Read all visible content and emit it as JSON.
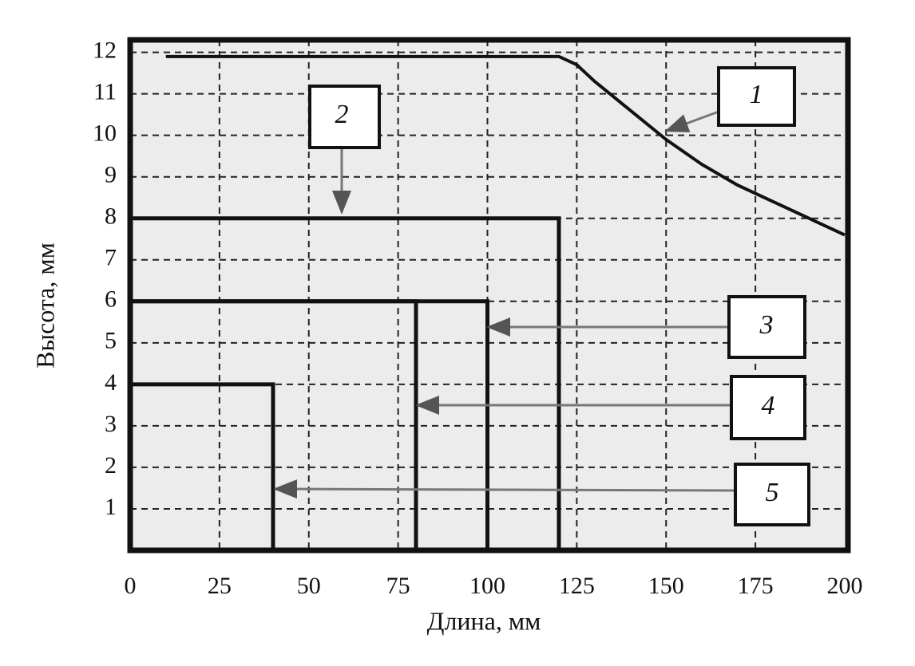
{
  "chart_data": {
    "type": "line",
    "xlabel": "Длина, мм",
    "ylabel": "Высота, мм",
    "xlim": [
      0,
      200
    ],
    "ylim": [
      0,
      12.3
    ],
    "xticks": [
      0,
      25,
      50,
      75,
      100,
      125,
      150,
      175,
      200
    ],
    "yticks": [
      1,
      2,
      3,
      4,
      5,
      6,
      7,
      8,
      9,
      10,
      11,
      12
    ],
    "grid": true,
    "series": [
      {
        "name": "1",
        "color": "#111111",
        "x": [
          10,
          120,
          125,
          130,
          140,
          150,
          160,
          170,
          180,
          190,
          200
        ],
        "values": [
          11.9,
          11.9,
          11.7,
          11.3,
          10.6,
          9.9,
          9.3,
          8.8,
          8.4,
          8.0,
          7.6
        ]
      }
    ],
    "rectangles": [
      {
        "name": "2",
        "length": 120,
        "height": 8
      },
      {
        "name": "3",
        "length": 100,
        "height": 6
      },
      {
        "name": "4",
        "length": 80,
        "height": 6
      },
      {
        "name": "5",
        "length": 40,
        "height": 4
      }
    ]
  }
}
